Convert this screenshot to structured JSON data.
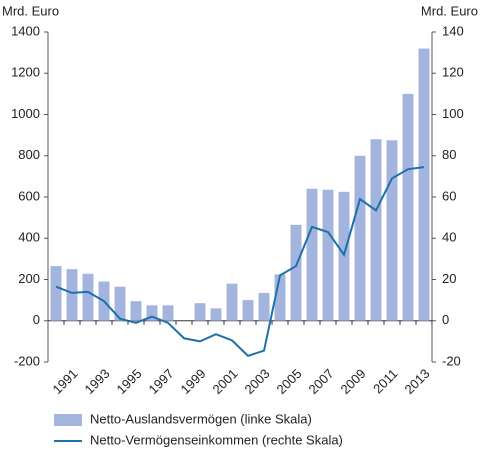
{
  "chart_data": {
    "type": "bar_line",
    "y_label": "Mrd. Euro",
    "y2_label": "Mrd. Euro",
    "categories": [
      null,
      "1991",
      null,
      "1993",
      null,
      "1995",
      null,
      "1997",
      null,
      "1999",
      null,
      "2001",
      null,
      "2003",
      null,
      "2005",
      null,
      "2007",
      null,
      "2009",
      null,
      "2011",
      null,
      "2013"
    ],
    "series": [
      {
        "name": "Netto-Auslandsvermögen (linke Skala)",
        "type": "bar",
        "color": "#a3b5de",
        "values": [
          265,
          250,
          228,
          190,
          165,
          95,
          75,
          75,
          null,
          85,
          60,
          180,
          100,
          135,
          225,
          465,
          640,
          635,
          625,
          800,
          880,
          875,
          1100,
          1320
        ]
      },
      {
        "name": "Netto-Vermögenseinkommen (rechte Skala)",
        "type": "line",
        "axis": "y2",
        "color": "#1f6fa8",
        "values": [
          16.5,
          13.5,
          14,
          9.5,
          1,
          -1,
          2,
          -1,
          -8.5,
          -10,
          -6.5,
          -9.5,
          -17,
          -14.5,
          22,
          26.5,
          45.5,
          43,
          32,
          59,
          53.5,
          69,
          73.5,
          74.5
        ]
      }
    ],
    "ylim": [
      -200,
      1400
    ],
    "yticks": [
      -200,
      0,
      200,
      400,
      600,
      800,
      1000,
      1200,
      1400
    ],
    "y2lim": [
      -20,
      140
    ],
    "y2ticks": [
      -20,
      0,
      20,
      40,
      60,
      80,
      100,
      120,
      140
    ]
  }
}
